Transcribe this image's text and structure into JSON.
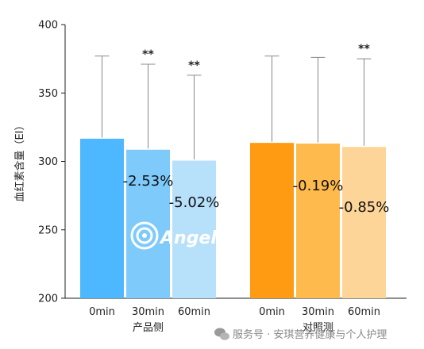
{
  "chart_data": {
    "type": "bar",
    "ylabel": "血红素含量（EI）",
    "ylim": [
      200,
      400
    ],
    "yticks": [
      200,
      250,
      300,
      350,
      400
    ],
    "groups": [
      {
        "label": "产品侧",
        "bars": [
          {
            "category": "0min",
            "value": 317,
            "error_upper": 377,
            "color": "#4db8ff",
            "significance": "",
            "change_label": ""
          },
          {
            "category": "30min",
            "value": 309,
            "error_upper": 371,
            "color": "#7ecbfb",
            "significance": "**",
            "change_label": "-2.53%"
          },
          {
            "category": "60min",
            "value": 301,
            "error_upper": 363,
            "color": "#b7e0fb",
            "significance": "**",
            "change_label": "-5.02%"
          }
        ]
      },
      {
        "label": "对照测",
        "bars": [
          {
            "category": "0min",
            "value": 314,
            "error_upper": 377,
            "color": "#ff9b12",
            "significance": "",
            "change_label": ""
          },
          {
            "category": "30min",
            "value": 313.5,
            "error_upper": 376,
            "color": "#ffba4d",
            "significance": "",
            "change_label": "-0.19%"
          },
          {
            "category": "60min",
            "value": 311,
            "error_upper": 375,
            "color": "#fdd598",
            "significance": "**",
            "change_label": "-0.85%"
          }
        ]
      }
    ]
  },
  "watermark": {
    "logo_text": "Angel",
    "footer_text": "服务号 · 安琪营养健康与个人护理"
  }
}
